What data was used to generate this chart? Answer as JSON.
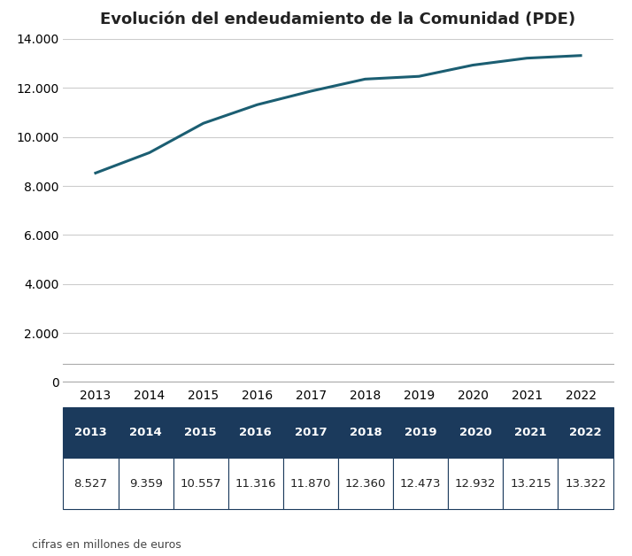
{
  "title": "Evolución del endeudamiento de la Comunidad (PDE)",
  "years": [
    2013,
    2014,
    2015,
    2016,
    2017,
    2018,
    2019,
    2020,
    2021,
    2022
  ],
  "values": [
    8527,
    9359,
    10557,
    11316,
    11870,
    12360,
    12473,
    12932,
    13215,
    13322
  ],
  "values_fmt": [
    "8.527",
    "9.359",
    "10.557",
    "11.316",
    "11.870",
    "12.360",
    "12.473",
    "12.932",
    "13.215",
    "13.322"
  ],
  "line_color": "#1b5e72",
  "line_width": 2.2,
  "ylim": [
    0,
    14000
  ],
  "yticks": [
    0,
    2000,
    4000,
    6000,
    8000,
    10000,
    12000,
    14000
  ],
  "ytick_labels": [
    "0",
    "2.000",
    "4.000",
    "6.000",
    "8.000",
    "10.000",
    "12.000",
    "14.000"
  ],
  "grid_color": "#cccccc",
  "background_color": "#ffffff",
  "title_fontsize": 13,
  "tick_fontsize": 10,
  "table_header_bg": "#1b3a5c",
  "table_header_fg": "#ffffff",
  "table_data_bg": "#ffffff",
  "table_border_color": "#1b3a5c",
  "footnote": "cifras en millones de euros",
  "footnote_fontsize": 9
}
